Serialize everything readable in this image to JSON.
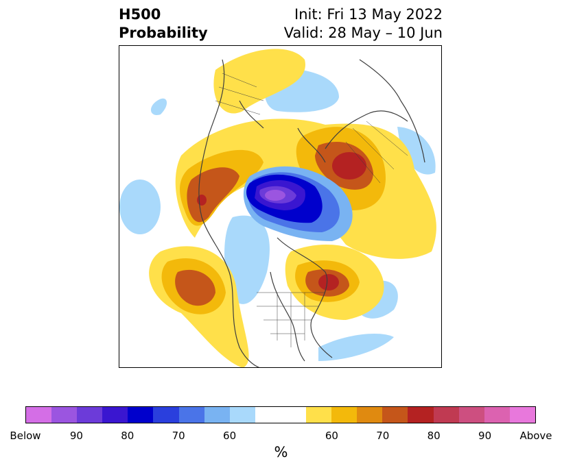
{
  "title": {
    "left_line1": "H500",
    "left_line2": "Probability",
    "right_line1": "Init: Fri 13 May 2022",
    "right_line2": "Valid: 28 May – 10 Jun"
  },
  "colorbar": {
    "colors": [
      "#d46ee6",
      "#9b55e0",
      "#6c3bd9",
      "#3a16d0",
      "#0000cc",
      "#2a3fdd",
      "#4a74e8",
      "#79b3f2",
      "#a9d9fb",
      "#ffffff",
      "#ffffff",
      "#ffe04a",
      "#f3b90b",
      "#e08a10",
      "#c5561a",
      "#b42222",
      "#c03a52",
      "#cd4f80",
      "#dc62b0",
      "#e878dc"
    ],
    "labels": [
      "Below",
      "90",
      "80",
      "70",
      "60",
      "60",
      "70",
      "80",
      "90",
      "Above"
    ],
    "unit": "%"
  },
  "palette": {
    "land_edge": "#3d3d3d",
    "above": "#ffe04a",
    "below": "#a9d9fb"
  }
}
